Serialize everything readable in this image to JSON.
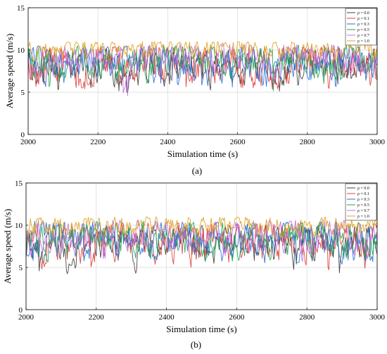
{
  "chart_data": [
    {
      "type": "line",
      "panel_label": "(a)",
      "xlabel": "Simulation time (s)",
      "ylabel": "Average speed (m/s)",
      "xlim": [
        2000,
        3000
      ],
      "ylim": [
        0,
        15
      ],
      "xticks": [
        "2000",
        "2200",
        "2400",
        "2600",
        "2800",
        "3000"
      ],
      "yticks": [
        "0",
        "5",
        "10",
        "15"
      ],
      "grid": true,
      "legend_position": "top-right",
      "series": [
        {
          "name": "ρ = 0.0",
          "color": "#404040",
          "mean": 8.1,
          "amp": 1.6,
          "min": 4.9,
          "max": 10.2
        },
        {
          "name": "ρ = 0.1",
          "color": "#e0403a",
          "mean": 8.3,
          "amp": 1.6,
          "min": 5.4,
          "max": 10.4
        },
        {
          "name": "ρ = 0.3",
          "color": "#2a6fd6",
          "mean": 8.5,
          "amp": 1.5,
          "min": 5.6,
          "max": 10.5
        },
        {
          "name": "ρ = 0.5",
          "color": "#22a55a",
          "mean": 8.7,
          "amp": 1.4,
          "min": 5.1,
          "max": 10.6
        },
        {
          "name": "ρ = 0.7",
          "color": "#c070e0",
          "mean": 9.0,
          "amp": 1.3,
          "min": 4.5,
          "max": 10.7
        },
        {
          "name": "ρ = 1.0",
          "color": "#e0a020",
          "mean": 10.2,
          "amp": 0.8,
          "min": 8.6,
          "max": 11.0
        }
      ]
    },
    {
      "type": "line",
      "panel_label": "(b)",
      "xlabel": "Simulation time (s)",
      "ylabel": "Average speed (m/s)",
      "xlim": [
        2000,
        3000
      ],
      "ylim": [
        0,
        15
      ],
      "xticks": [
        "2000",
        "2200",
        "2400",
        "2600",
        "2800",
        "3000"
      ],
      "yticks": [
        "0",
        "5",
        "10",
        "15"
      ],
      "grid": true,
      "legend_position": "top-right",
      "series": [
        {
          "name": "ρ = 0.0",
          "color": "#404040",
          "mean": 7.9,
          "amp": 1.6,
          "min": 4.2,
          "max": 10.0
        },
        {
          "name": "ρ = 0.1",
          "color": "#e0403a",
          "mean": 8.1,
          "amp": 1.6,
          "min": 4.6,
          "max": 10.3
        },
        {
          "name": "ρ = 0.3",
          "color": "#2a6fd6",
          "mean": 8.3,
          "amp": 1.5,
          "min": 5.3,
          "max": 10.4
        },
        {
          "name": "ρ = 0.5",
          "color": "#22a55a",
          "mean": 8.5,
          "amp": 1.4,
          "min": 5.5,
          "max": 10.5
        },
        {
          "name": "ρ = 0.7",
          "color": "#c070e0",
          "mean": 8.8,
          "amp": 1.3,
          "min": 5.6,
          "max": 10.6
        },
        {
          "name": "ρ = 1.0",
          "color": "#e0a020",
          "mean": 10.1,
          "amp": 0.8,
          "min": 8.5,
          "max": 11.0
        }
      ]
    }
  ]
}
